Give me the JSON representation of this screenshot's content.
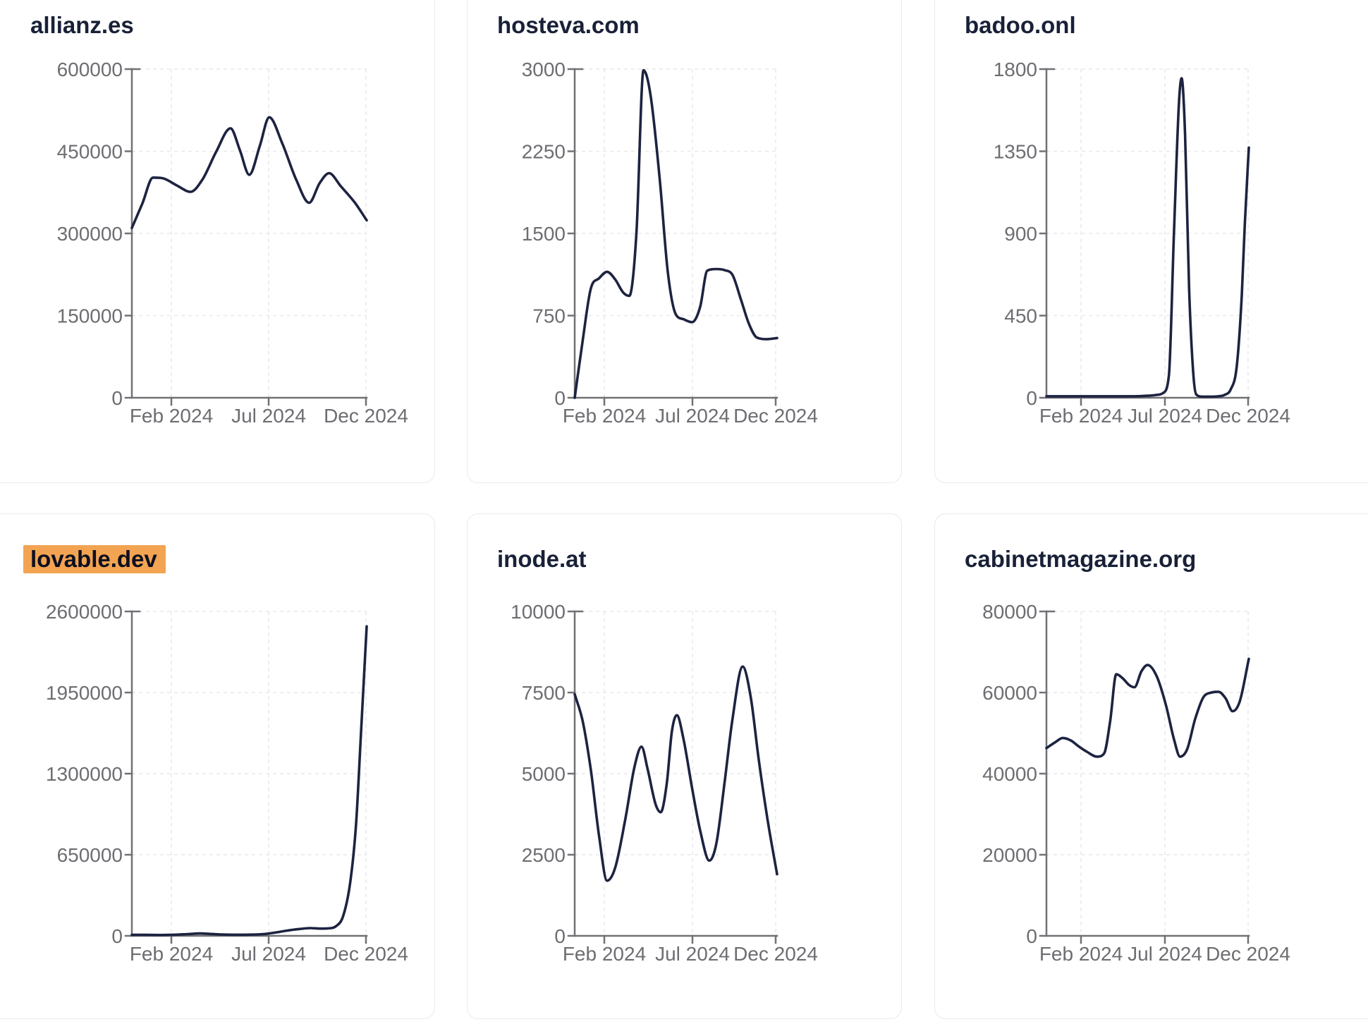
{
  "page": {
    "background": "#ffffff"
  },
  "style": {
    "line_color": "#1d2340",
    "title_color": "#192138",
    "highlight_color": "#f2a452",
    "axis_color": "#717176",
    "tick_label_color": "#6d6d72",
    "grid_color": "#e9e9ec",
    "card_border_color": "#e9e9f2"
  },
  "chart_data": [
    {
      "type": "line",
      "title": "allianz.es",
      "highlighted": false,
      "x_ticks": [
        "Feb 2024",
        "Jul 2024",
        "Dec 2024"
      ],
      "y_ticks": [
        "0",
        "150000",
        "300000",
        "450000",
        "600000"
      ],
      "ylim": [
        0,
        600000
      ],
      "x_range": [
        0,
        1
      ],
      "grid": true,
      "points": [
        [
          0,
          310000
        ],
        [
          0.045,
          355000
        ],
        [
          0.09,
          402000
        ],
        [
          0.13,
          401000
        ],
        [
          0.19,
          388000
        ],
        [
          0.25,
          376000
        ],
        [
          0.3,
          398000
        ],
        [
          0.36,
          450000
        ],
        [
          0.42,
          492000
        ],
        [
          0.46,
          452000
        ],
        [
          0.5,
          407000
        ],
        [
          0.545,
          460000
        ],
        [
          0.585,
          512000
        ],
        [
          0.64,
          465000
        ],
        [
          0.7,
          398000
        ],
        [
          0.755,
          356000
        ],
        [
          0.8,
          392000
        ],
        [
          0.84,
          410000
        ],
        [
          0.89,
          386000
        ],
        [
          0.95,
          356000
        ],
        [
          1,
          324000
        ]
      ]
    },
    {
      "type": "line",
      "title": "hosteva.com",
      "highlighted": false,
      "x_ticks": [
        "Feb 2024",
        "Jul 2024",
        "Dec 2024"
      ],
      "y_ticks": [
        "0",
        "750",
        "1500",
        "2250",
        "3000"
      ],
      "ylim": [
        0,
        3000
      ],
      "x_range": [
        0,
        1
      ],
      "grid": true,
      "points": [
        [
          0,
          0
        ],
        [
          0.04,
          530
        ],
        [
          0.08,
          1000
        ],
        [
          0.12,
          1090
        ],
        [
          0.16,
          1150
        ],
        [
          0.2,
          1080
        ],
        [
          0.24,
          960
        ],
        [
          0.27,
          930
        ],
        [
          0.305,
          1500
        ],
        [
          0.34,
          2990
        ],
        [
          0.375,
          2760
        ],
        [
          0.42,
          2000
        ],
        [
          0.46,
          1150
        ],
        [
          0.5,
          760
        ],
        [
          0.54,
          715
        ],
        [
          0.58,
          690
        ],
        [
          0.62,
          830
        ],
        [
          0.655,
          1160
        ],
        [
          0.7,
          1175
        ],
        [
          0.74,
          1165
        ],
        [
          0.78,
          1120
        ],
        [
          0.82,
          905
        ],
        [
          0.86,
          680
        ],
        [
          0.9,
          550
        ],
        [
          0.95,
          535
        ],
        [
          1,
          545
        ]
      ]
    },
    {
      "type": "line",
      "title": "badoo.onl",
      "highlighted": false,
      "x_ticks": [
        "Feb 2024",
        "Jul 2024",
        "Dec 2024"
      ],
      "y_ticks": [
        "0",
        "450",
        "900",
        "1350",
        "1800"
      ],
      "ylim": [
        0,
        1800
      ],
      "x_range": [
        0,
        1
      ],
      "grid": true,
      "points": [
        [
          0,
          8
        ],
        [
          0.06,
          8
        ],
        [
          0.12,
          8
        ],
        [
          0.18,
          8
        ],
        [
          0.24,
          8
        ],
        [
          0.3,
          8
        ],
        [
          0.36,
          8
        ],
        [
          0.42,
          8
        ],
        [
          0.48,
          10
        ],
        [
          0.54,
          15
        ],
        [
          0.575,
          25
        ],
        [
          0.605,
          120
        ],
        [
          0.63,
          900
        ],
        [
          0.655,
          1620
        ],
        [
          0.668,
          1750
        ],
        [
          0.685,
          1440
        ],
        [
          0.705,
          600
        ],
        [
          0.725,
          140
        ],
        [
          0.74,
          18
        ],
        [
          0.77,
          6
        ],
        [
          0.81,
          6
        ],
        [
          0.85,
          8
        ],
        [
          0.88,
          16
        ],
        [
          0.91,
          45
        ],
        [
          0.94,
          170
        ],
        [
          0.965,
          560
        ],
        [
          0.98,
          950
        ],
        [
          1,
          1370
        ]
      ]
    },
    {
      "type": "line",
      "title": "lovable.dev",
      "highlighted": true,
      "x_ticks": [
        "Feb 2024",
        "Jul 2024",
        "Dec 2024"
      ],
      "y_ticks": [
        "0",
        "650000",
        "1300000",
        "1950000",
        "2600000"
      ],
      "ylim": [
        0,
        2600000
      ],
      "x_range": [
        0,
        1
      ],
      "grid": true,
      "points": [
        [
          0,
          8000
        ],
        [
          0.06,
          8000
        ],
        [
          0.12,
          7000
        ],
        [
          0.18,
          9000
        ],
        [
          0.24,
          14000
        ],
        [
          0.29,
          19000
        ],
        [
          0.33,
          16000
        ],
        [
          0.38,
          11000
        ],
        [
          0.44,
          9000
        ],
        [
          0.5,
          9500
        ],
        [
          0.56,
          14000
        ],
        [
          0.61,
          26000
        ],
        [
          0.66,
          42000
        ],
        [
          0.71,
          54000
        ],
        [
          0.76,
          62000
        ],
        [
          0.8,
          58000
        ],
        [
          0.835,
          60000
        ],
        [
          0.87,
          78000
        ],
        [
          0.9,
          160000
        ],
        [
          0.93,
          430000
        ],
        [
          0.955,
          900000
        ],
        [
          0.975,
          1600000
        ],
        [
          1,
          2480000
        ]
      ]
    },
    {
      "type": "line",
      "title": "inode.at",
      "highlighted": false,
      "x_ticks": [
        "Feb 2024",
        "Jul 2024",
        "Dec 2024"
      ],
      "y_ticks": [
        "0",
        "2500",
        "5000",
        "7500",
        "10000"
      ],
      "ylim": [
        0,
        10000
      ],
      "x_range": [
        0,
        1
      ],
      "grid": true,
      "points": [
        [
          0,
          7450
        ],
        [
          0.04,
          6600
        ],
        [
          0.08,
          5100
        ],
        [
          0.12,
          3100
        ],
        [
          0.16,
          1700
        ],
        [
          0.2,
          2100
        ],
        [
          0.25,
          3600
        ],
        [
          0.295,
          5200
        ],
        [
          0.33,
          5830
        ],
        [
          0.36,
          5150
        ],
        [
          0.4,
          4050
        ],
        [
          0.425,
          3810
        ],
        [
          0.455,
          4700
        ],
        [
          0.48,
          6300
        ],
        [
          0.505,
          6800
        ],
        [
          0.535,
          6150
        ],
        [
          0.58,
          4550
        ],
        [
          0.62,
          3250
        ],
        [
          0.665,
          2320
        ],
        [
          0.7,
          2850
        ],
        [
          0.74,
          4700
        ],
        [
          0.78,
          6700
        ],
        [
          0.83,
          8300
        ],
        [
          0.87,
          7350
        ],
        [
          0.91,
          5400
        ],
        [
          0.955,
          3500
        ],
        [
          1,
          1900
        ]
      ]
    },
    {
      "type": "line",
      "title": "cabinetmagazine.org",
      "highlighted": false,
      "x_ticks": [
        "Feb 2024",
        "Jul 2024",
        "Dec 2024"
      ],
      "y_ticks": [
        "0",
        "20000",
        "40000",
        "60000",
        "80000"
      ],
      "ylim": [
        0,
        80000
      ],
      "x_range": [
        0,
        1
      ],
      "grid": true,
      "points": [
        [
          0,
          46300
        ],
        [
          0.045,
          47800
        ],
        [
          0.08,
          48800
        ],
        [
          0.12,
          48200
        ],
        [
          0.16,
          46700
        ],
        [
          0.2,
          45400
        ],
        [
          0.25,
          44200
        ],
        [
          0.285,
          45000
        ],
        [
          0.315,
          53000
        ],
        [
          0.345,
          64500
        ],
        [
          0.375,
          63600
        ],
        [
          0.41,
          61800
        ],
        [
          0.435,
          61300
        ],
        [
          0.47,
          65300
        ],
        [
          0.5,
          66800
        ],
        [
          0.545,
          64000
        ],
        [
          0.59,
          57000
        ],
        [
          0.63,
          48500
        ],
        [
          0.66,
          44200
        ],
        [
          0.695,
          46000
        ],
        [
          0.735,
          53500
        ],
        [
          0.775,
          58800
        ],
        [
          0.815,
          60000
        ],
        [
          0.85,
          60200
        ],
        [
          0.885,
          58600
        ],
        [
          0.92,
          55400
        ],
        [
          0.955,
          57800
        ],
        [
          1,
          68300
        ]
      ]
    }
  ]
}
